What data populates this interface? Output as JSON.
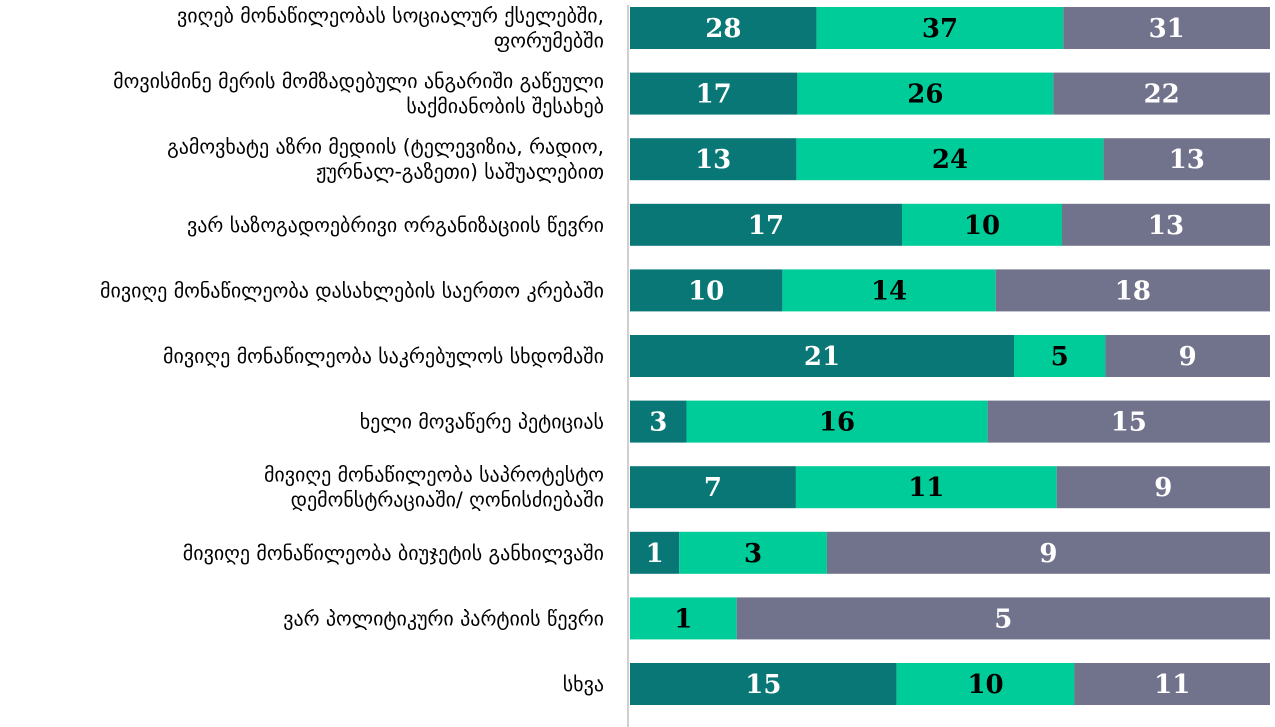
{
  "chart_data": {
    "type": "bar",
    "orientation": "horizontal",
    "stacked": true,
    "grid": false,
    "legend": "none",
    "categories": [
      [
        "ვიღებ მონაწილეობას სოციალურ ქსელებში,",
        "ფორუმებში"
      ],
      [
        "მოვისმინე მერის მომზადებული ანგარიში გაწეული",
        "საქმიანობის შესახებ"
      ],
      [
        "გამოვხატე აზრი მედიის (ტელევიზია, რადიო,",
        "ჟურნალ-გაზეთი) საშუალებით"
      ],
      [
        "ვარ საზოგადოებრივი ორგანიზაციის წევრი"
      ],
      [
        "მივიღე მონაწილეობა დასახლების საერთო კრებაში"
      ],
      [
        "მივიღე მონაწილეობა საკრებულოს სხდომაში"
      ],
      [
        "ხელი მოვაწერე პეტიციას"
      ],
      [
        "მივიღე მონაწილეობა საპროტესტო",
        "დემონსტრაციაში/ ღონისძიებაში"
      ],
      [
        "მივიღე მონაწილეობა ბიუჯეტის განხილვაში"
      ],
      [
        "ვარ პოლიტიკური პარტიის წევრი"
      ],
      [
        "სხვა"
      ]
    ],
    "series": [
      {
        "values": [
          28,
          17,
          13,
          17,
          10,
          21,
          3,
          7,
          1,
          0,
          15
        ],
        "color": "#0a7777",
        "label_color": "#ffffff"
      },
      {
        "values": [
          37,
          26,
          24,
          10,
          14,
          5,
          16,
          11,
          3,
          1,
          10
        ],
        "color": "#00cc99",
        "label_color": "#000000"
      },
      {
        "values": [
          31,
          22,
          13,
          13,
          18,
          9,
          15,
          9,
          9,
          5,
          11
        ],
        "color": "#71728c",
        "label_color": "#ffffff"
      }
    ]
  }
}
